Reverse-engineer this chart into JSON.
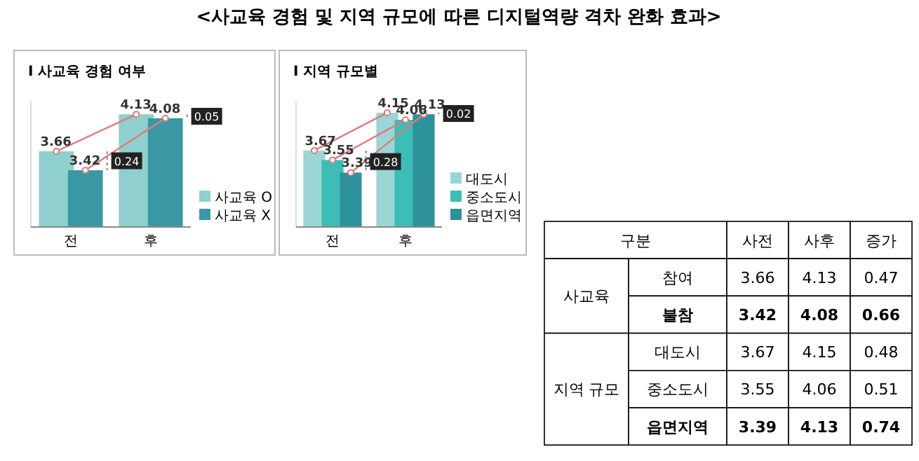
{
  "chart_data": [
    {
      "type": "bar",
      "title": "I 사교육 경험 여부",
      "categories": [
        "전",
        "후"
      ],
      "ylim": [
        2.7,
        4.3
      ],
      "tick_labels": "x",
      "legend": "right",
      "data_labels": true,
      "series": [
        {
          "name": "사교육 O",
          "color": "#8fd0cf",
          "values": [
            3.66,
            4.13
          ]
        },
        {
          "name": "사교육 X",
          "color": "#3a98a4",
          "values": [
            3.42,
            4.08
          ]
        }
      ],
      "annotations": [
        "0.24",
        "0.05"
      ]
    },
    {
      "type": "bar",
      "title": "I 지역 규모별",
      "categories": [
        "전",
        "후"
      ],
      "ylim": [
        2.7,
        4.3
      ],
      "tick_labels": "x",
      "legend": "right",
      "data_labels": true,
      "series": [
        {
          "name": "대도시",
          "color": "#9cd6d4",
          "values": [
            3.67,
            4.15
          ]
        },
        {
          "name": "중소도시",
          "color": "#3dbdb8",
          "values": [
            3.55,
            4.06
          ]
        },
        {
          "name": "읍면지역",
          "color": "#2e929c",
          "values": [
            3.39,
            4.13
          ]
        }
      ],
      "annotations": [
        "0.28",
        "0.02"
      ]
    },
    {
      "type": "other",
      "title": "<사교육 경험 및 지역 규모에 따른 디지털역량 격차 완화 효과>",
      "annotations": [
        "구분",
        "사전",
        "사후",
        "증가",
        "사교육",
        "참여",
        "3.66",
        "4.13",
        "0.47",
        "불참",
        "3.42",
        "4.08",
        "0.66",
        "지역 규모",
        "대도시",
        "3.67",
        "4.15",
        "0.48",
        "중소도시",
        "3.55",
        "4.06",
        "0.51",
        "읍면지역",
        "3.39",
        "4.13",
        "0.74"
      ]
    }
  ]
}
